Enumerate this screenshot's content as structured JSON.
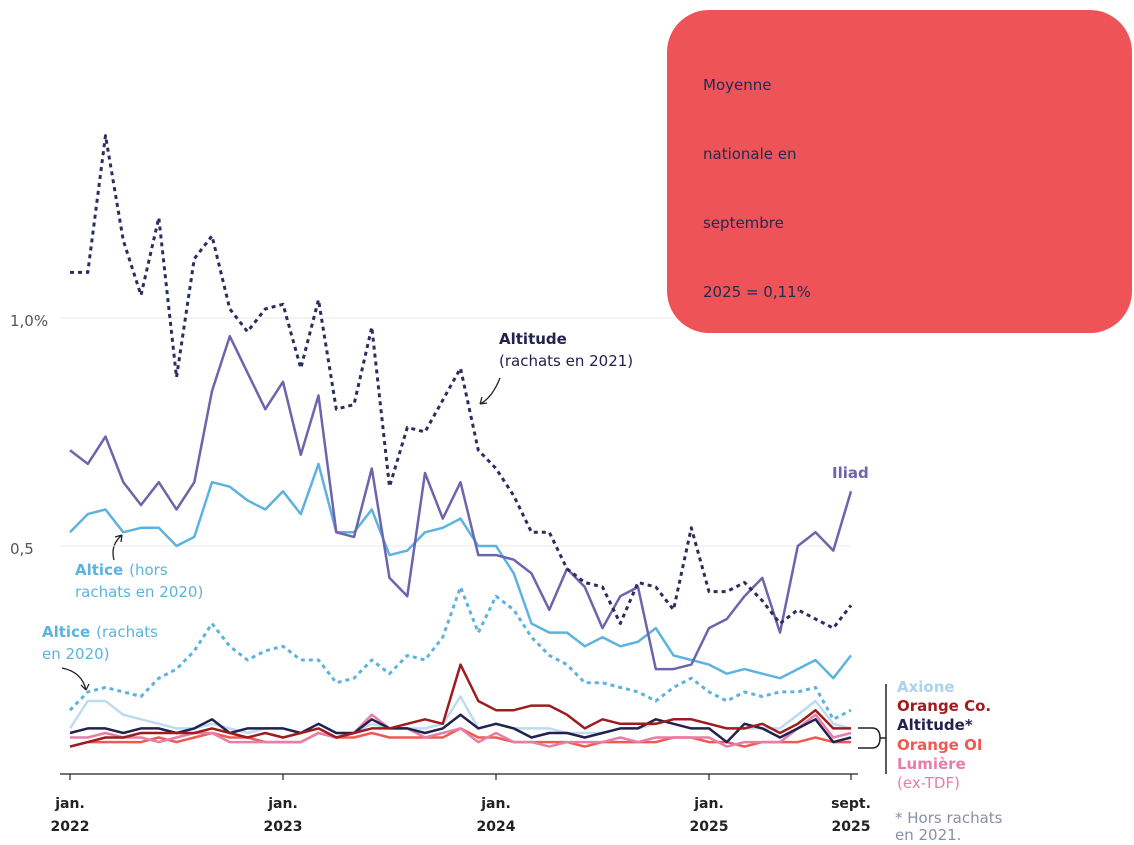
{
  "chart_data": {
    "type": "line",
    "callout": [
      "Moyenne",
      "nationale en",
      "septembre",
      "2025 = 0,11%"
    ],
    "footnote": [
      "* Hors rachats",
      "en 2021."
    ],
    "categories": [
      "2022-01",
      "2022-02",
      "2022-03",
      "2022-04",
      "2022-05",
      "2022-06",
      "2022-07",
      "2022-08",
      "2022-09",
      "2022-10",
      "2022-11",
      "2022-12",
      "2023-01",
      "2023-02",
      "2023-03",
      "2023-04",
      "2023-05",
      "2023-06",
      "2023-07",
      "2023-08",
      "2023-09",
      "2023-10",
      "2023-11",
      "2023-12",
      "2024-01",
      "2024-02",
      "2024-03",
      "2024-04",
      "2024-05",
      "2024-06",
      "2024-07",
      "2024-08",
      "2024-09",
      "2024-10",
      "2024-11",
      "2024-12",
      "2025-01",
      "2025-02",
      "2025-03",
      "2025-04",
      "2025-05",
      "2025-06",
      "2025-07",
      "2025-08",
      "2025-09"
    ],
    "xticks": [
      {
        "value": "2022-01",
        "label": "jan. 2022"
      },
      {
        "value": "2023-01",
        "label": "jan. 2023"
      },
      {
        "value": "2024-01",
        "label": "jan. 2024"
      },
      {
        "value": "2025-01",
        "label": "jan. 2025"
      },
      {
        "value": "2025-09",
        "label": "sept. 2025"
      }
    ],
    "ylim": [
      0,
      1.4
    ],
    "yticks": [
      {
        "value": 0.5,
        "label": "0,5"
      },
      {
        "value": 1,
        "label": "1,0%"
      }
    ],
    "grid": true,
    "series": [
      {
        "name": "Altitude",
        "note": [
          "(rachats en 2021)"
        ],
        "color": "#2b2d5f",
        "dashed": true,
        "values": [
          1.1,
          1.1,
          1.4,
          1.17,
          1.05,
          1.22,
          0.87,
          1.13,
          1.18,
          1.02,
          0.97,
          1.02,
          1.03,
          0.89,
          1.04,
          0.8,
          0.81,
          0.98,
          0.63,
          0.76,
          0.75,
          0.82,
          0.89,
          0.71,
          0.67,
          0.61,
          0.53,
          0.53,
          0.45,
          0.42,
          0.41,
          0.33,
          0.42,
          0.41,
          0.36,
          0.54,
          0.4,
          0.4,
          0.42,
          0.38,
          0.33,
          0.36,
          0.34,
          0.32,
          0.37
        ]
      },
      {
        "name": "Iliad",
        "color": "#6c65ab",
        "values": [
          0.71,
          0.68,
          0.74,
          0.64,
          0.59,
          0.64,
          0.58,
          0.64,
          0.84,
          0.96,
          0.88,
          0.8,
          0.86,
          0.7,
          0.83,
          0.53,
          0.52,
          0.67,
          0.43,
          0.39,
          0.66,
          0.56,
          0.64,
          0.48,
          0.48,
          0.47,
          0.44,
          0.36,
          0.45,
          0.41,
          0.32,
          0.39,
          0.41,
          0.23,
          0.23,
          0.24,
          0.32,
          0.34,
          0.39,
          0.43,
          0.31,
          0.5,
          0.53,
          0.49,
          0.62
        ]
      },
      {
        "name": "Altice",
        "note": [
          "(hors",
          "rachats en 2020)"
        ],
        "color": "#5db3df",
        "values": [
          0.53,
          0.57,
          0.58,
          0.53,
          0.54,
          0.54,
          0.5,
          0.52,
          0.64,
          0.63,
          0.6,
          0.58,
          0.62,
          0.57,
          0.68,
          0.53,
          0.53,
          0.58,
          0.48,
          0.49,
          0.53,
          0.54,
          0.56,
          0.5,
          0.5,
          0.44,
          0.33,
          0.31,
          0.31,
          0.28,
          0.3,
          0.28,
          0.29,
          0.32,
          0.26,
          0.25,
          0.24,
          0.22,
          0.23,
          0.22,
          0.21,
          0.23,
          0.25,
          0.21,
          0.26
        ]
      },
      {
        "name": "Altice",
        "note": [
          "(rachats",
          "en 2020)"
        ],
        "color": "#5db3df",
        "dashed": true,
        "values": [
          0.14,
          0.18,
          0.19,
          0.18,
          0.17,
          0.21,
          0.23,
          0.27,
          0.33,
          0.28,
          0.25,
          0.27,
          0.28,
          0.25,
          0.25,
          0.2,
          0.21,
          0.25,
          0.22,
          0.26,
          0.25,
          0.3,
          0.41,
          0.31,
          0.39,
          0.36,
          0.3,
          0.26,
          0.24,
          0.2,
          0.2,
          0.19,
          0.18,
          0.16,
          0.19,
          0.21,
          0.18,
          0.16,
          0.18,
          0.17,
          0.18,
          0.18,
          0.19,
          0.12,
          0.14
        ]
      },
      {
        "name": "Axione",
        "color": "#bcdcf0",
        "values": [
          0.1,
          0.16,
          0.16,
          0.13,
          0.12,
          0.11,
          0.1,
          0.1,
          0.11,
          0.1,
          0.09,
          0.1,
          0.1,
          0.09,
          0.11,
          0.09,
          0.09,
          0.11,
          0.1,
          0.1,
          0.1,
          0.11,
          0.17,
          0.1,
          0.11,
          0.1,
          0.1,
          0.1,
          0.09,
          0.09,
          0.09,
          0.1,
          0.1,
          0.11,
          0.12,
          0.12,
          0.11,
          0.1,
          0.1,
          0.1,
          0.1,
          0.13,
          0.16,
          0.11,
          0.1
        ]
      },
      {
        "name": "Orange Co.",
        "color": "#9e1b1e",
        "values": [
          0.06,
          0.07,
          0.08,
          0.08,
          0.09,
          0.09,
          0.09,
          0.09,
          0.1,
          0.09,
          0.08,
          0.09,
          0.08,
          0.09,
          0.1,
          0.08,
          0.09,
          0.1,
          0.1,
          0.11,
          0.12,
          0.11,
          0.24,
          0.16,
          0.14,
          0.14,
          0.15,
          0.15,
          0.13,
          0.1,
          0.12,
          0.11,
          0.11,
          0.11,
          0.12,
          0.12,
          0.11,
          0.1,
          0.1,
          0.11,
          0.09,
          0.11,
          0.14,
          0.1,
          0.1
        ]
      },
      {
        "name": "Altitude*",
        "color": "#22214f",
        "values": [
          0.09,
          0.1,
          0.1,
          0.09,
          0.1,
          0.1,
          0.09,
          0.1,
          0.12,
          0.09,
          0.1,
          0.1,
          0.1,
          0.09,
          0.11,
          0.09,
          0.09,
          0.12,
          0.1,
          0.1,
          0.09,
          0.1,
          0.13,
          0.1,
          0.11,
          0.1,
          0.08,
          0.09,
          0.09,
          0.08,
          0.09,
          0.1,
          0.1,
          0.12,
          0.11,
          0.1,
          0.1,
          0.07,
          0.11,
          0.1,
          0.08,
          0.1,
          0.12,
          0.07,
          0.08
        ]
      },
      {
        "name": "Orange OI",
        "color": "#ee5a52",
        "values": [
          0.06,
          0.07,
          0.07,
          0.07,
          0.07,
          0.08,
          0.07,
          0.08,
          0.09,
          0.08,
          0.08,
          0.07,
          0.07,
          0.07,
          0.09,
          0.08,
          0.08,
          0.09,
          0.08,
          0.08,
          0.08,
          0.08,
          0.1,
          0.08,
          0.08,
          0.07,
          0.07,
          0.07,
          0.07,
          0.06,
          0.07,
          0.07,
          0.07,
          0.07,
          0.08,
          0.08,
          0.07,
          0.07,
          0.06,
          0.07,
          0.07,
          0.07,
          0.08,
          0.07,
          0.07
        ]
      },
      {
        "name": "Lumière",
        "note": [
          "(ex-TDF)"
        ],
        "color": "#e77ea8",
        "values": [
          0.08,
          0.08,
          0.09,
          0.08,
          0.08,
          0.07,
          0.08,
          0.09,
          0.09,
          0.07,
          0.07,
          0.07,
          0.07,
          0.07,
          0.09,
          0.08,
          0.09,
          0.13,
          0.1,
          0.1,
          0.08,
          0.09,
          0.1,
          0.07,
          0.09,
          0.07,
          0.07,
          0.06,
          0.07,
          0.07,
          0.07,
          0.08,
          0.07,
          0.08,
          0.08,
          0.08,
          0.08,
          0.06,
          0.07,
          0.07,
          0.07,
          0.1,
          0.13,
          0.08,
          0.09
        ]
      }
    ]
  }
}
